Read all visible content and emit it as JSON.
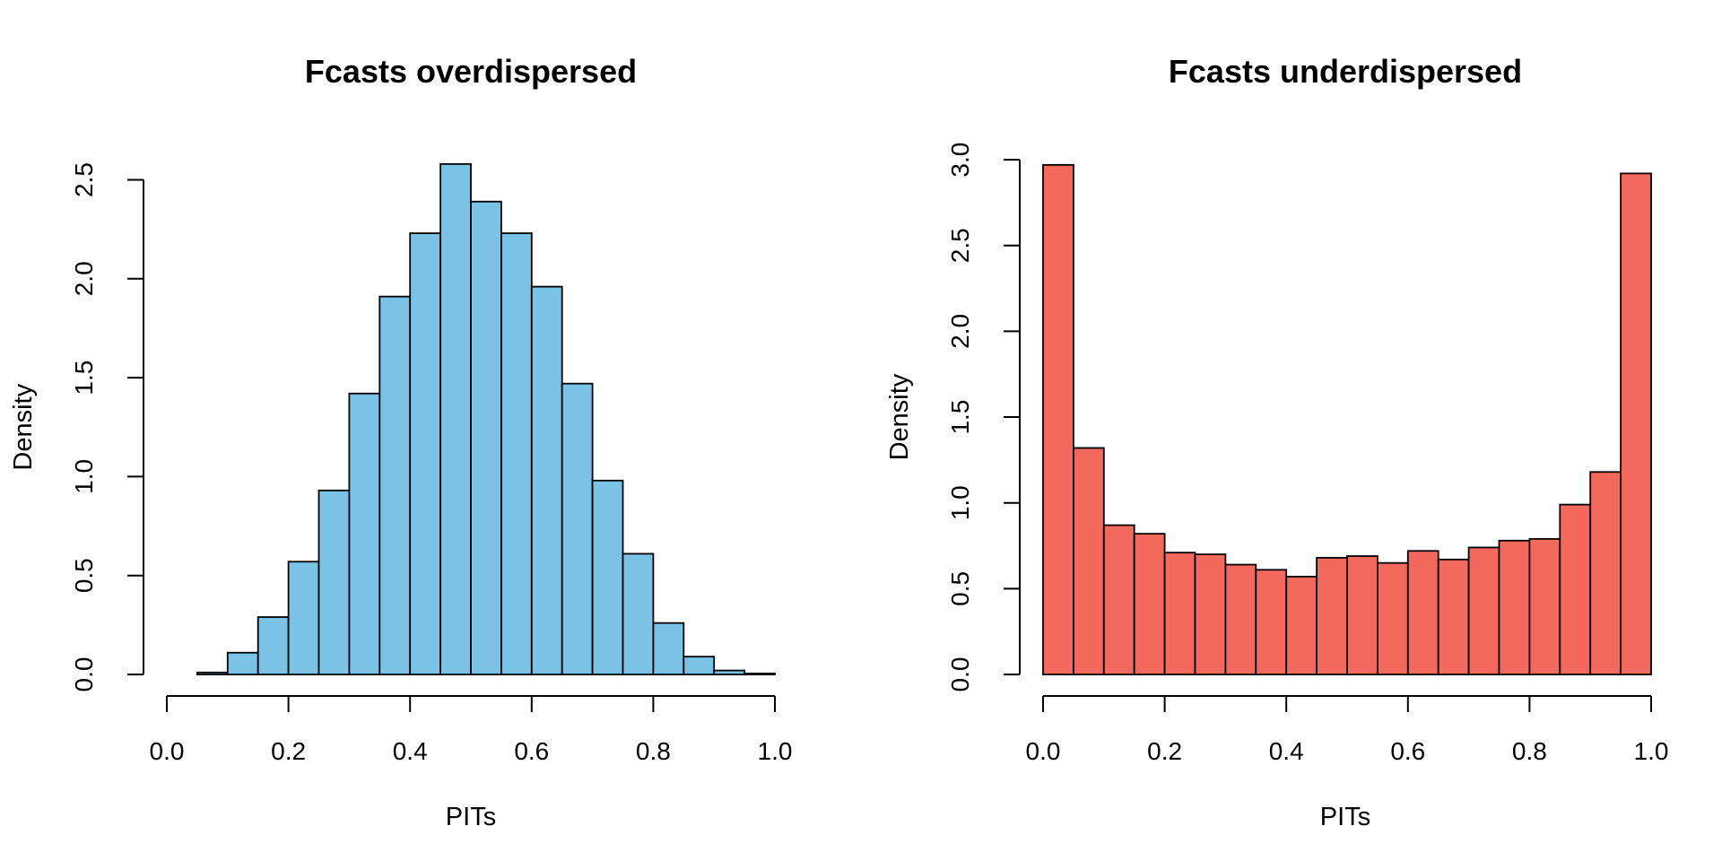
{
  "chart_data": [
    {
      "type": "bar",
      "title": "Fcasts overdispersed",
      "xlabel": "PITs",
      "ylabel": "Density",
      "color": "#7AC3E6",
      "xlim": [
        0.0,
        1.0
      ],
      "ylim": [
        0.0,
        2.6
      ],
      "xticks": [
        "0.0",
        "0.2",
        "0.4",
        "0.6",
        "0.8",
        "1.0"
      ],
      "yticks": [
        "0.0",
        "0.5",
        "1.0",
        "1.5",
        "2.0",
        "2.5"
      ],
      "bin_width": 0.05,
      "bins": [
        {
          "x0": 0.05,
          "density": 0.01
        },
        {
          "x0": 0.1,
          "density": 0.11
        },
        {
          "x0": 0.15,
          "density": 0.29
        },
        {
          "x0": 0.2,
          "density": 0.57
        },
        {
          "x0": 0.25,
          "density": 0.93
        },
        {
          "x0": 0.3,
          "density": 1.42
        },
        {
          "x0": 0.35,
          "density": 1.91
        },
        {
          "x0": 0.4,
          "density": 2.23
        },
        {
          "x0": 0.45,
          "density": 2.58
        },
        {
          "x0": 0.5,
          "density": 2.39
        },
        {
          "x0": 0.55,
          "density": 2.23
        },
        {
          "x0": 0.6,
          "density": 1.96
        },
        {
          "x0": 0.65,
          "density": 1.47
        },
        {
          "x0": 0.7,
          "density": 0.98
        },
        {
          "x0": 0.75,
          "density": 0.61
        },
        {
          "x0": 0.8,
          "density": 0.26
        },
        {
          "x0": 0.85,
          "density": 0.09
        },
        {
          "x0": 0.9,
          "density": 0.02
        },
        {
          "x0": 0.95,
          "density": 0.005
        }
      ]
    },
    {
      "type": "bar",
      "title": "Fcasts underdispersed",
      "xlabel": "PITs",
      "ylabel": "Density",
      "color": "#F4695E",
      "xlim": [
        0.0,
        1.0
      ],
      "ylim": [
        0.0,
        3.0
      ],
      "xticks": [
        "0.0",
        "0.2",
        "0.4",
        "0.6",
        "0.8",
        "1.0"
      ],
      "yticks": [
        "0.0",
        "0.5",
        "1.0",
        "1.5",
        "2.0",
        "2.5",
        "3.0"
      ],
      "bin_width": 0.05,
      "bins": [
        {
          "x0": 0.0,
          "density": 2.97
        },
        {
          "x0": 0.05,
          "density": 1.32
        },
        {
          "x0": 0.1,
          "density": 0.87
        },
        {
          "x0": 0.15,
          "density": 0.82
        },
        {
          "x0": 0.2,
          "density": 0.71
        },
        {
          "x0": 0.25,
          "density": 0.7
        },
        {
          "x0": 0.3,
          "density": 0.64
        },
        {
          "x0": 0.35,
          "density": 0.61
        },
        {
          "x0": 0.4,
          "density": 0.57
        },
        {
          "x0": 0.45,
          "density": 0.68
        },
        {
          "x0": 0.5,
          "density": 0.69
        },
        {
          "x0": 0.55,
          "density": 0.65
        },
        {
          "x0": 0.6,
          "density": 0.72
        },
        {
          "x0": 0.65,
          "density": 0.67
        },
        {
          "x0": 0.7,
          "density": 0.74
        },
        {
          "x0": 0.75,
          "density": 0.78
        },
        {
          "x0": 0.8,
          "density": 0.79
        },
        {
          "x0": 0.85,
          "density": 0.99
        },
        {
          "x0": 0.9,
          "density": 1.18
        },
        {
          "x0": 0.95,
          "density": 2.92
        }
      ]
    }
  ]
}
